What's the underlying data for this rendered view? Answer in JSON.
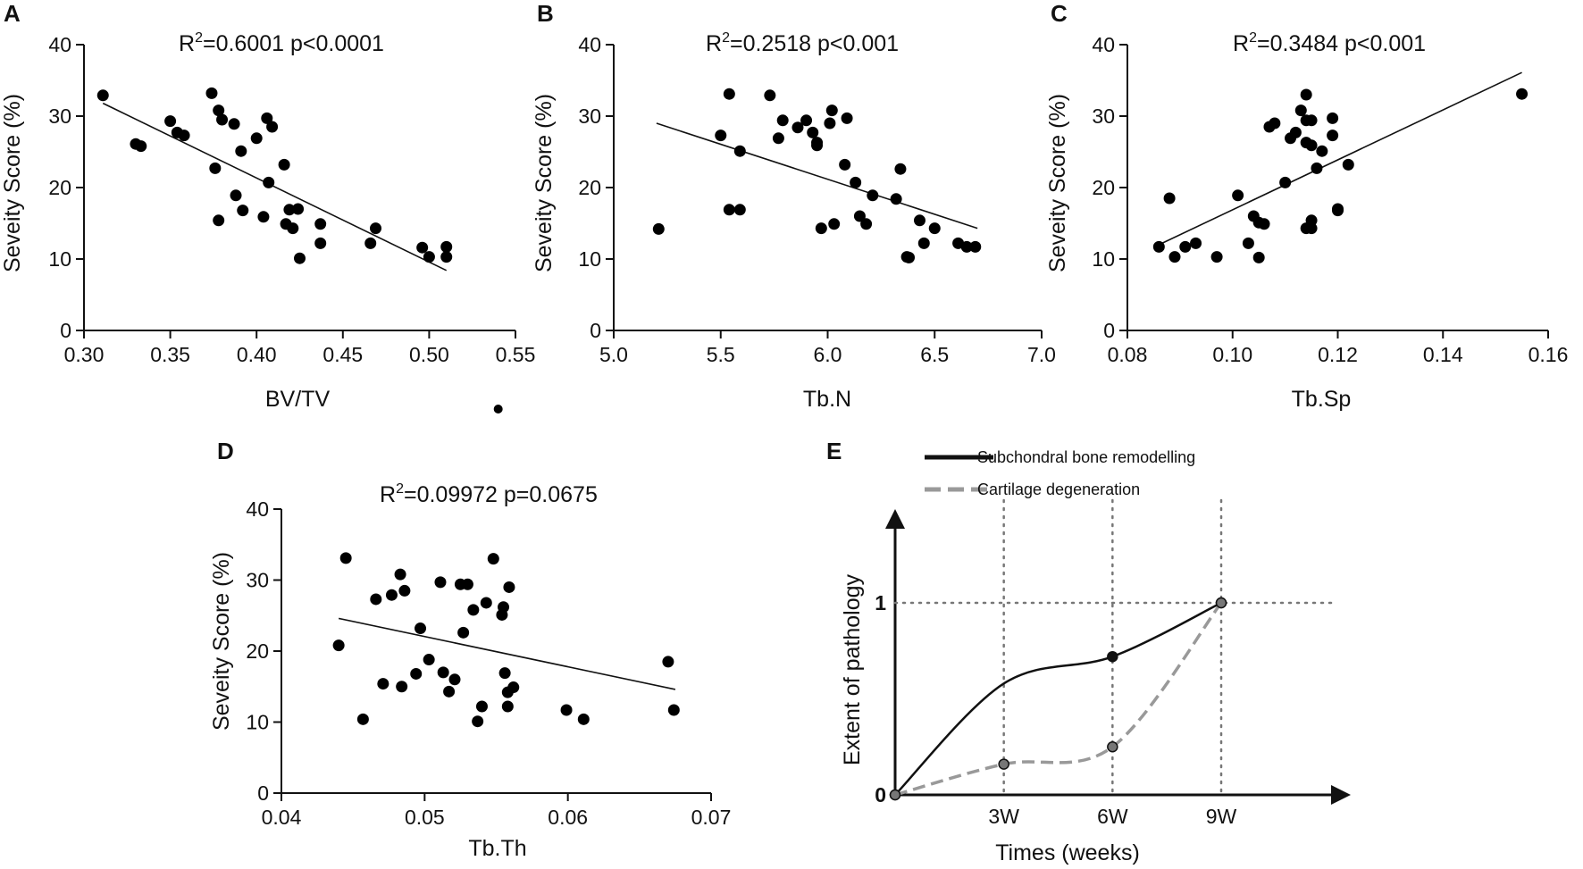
{
  "chart_data": [
    {
      "panel": "A",
      "type": "scatter",
      "stat": {
        "r2_prefix": "R",
        "r2_sup": "2",
        "r2_value": "=0.6001 p<0.0001"
      },
      "xlabel": "BV/TV",
      "ylabel": "Seveity Score (%)",
      "xlim": [
        0.3,
        0.55
      ],
      "ylim": [
        0,
        40
      ],
      "xticks": [
        "0.30",
        "0.35",
        "0.40",
        "0.45",
        "0.50",
        "0.55"
      ],
      "yticks": [
        "0",
        "10",
        "20",
        "30",
        "40"
      ],
      "fit_line": [
        [
          0.311,
          31.8
        ],
        [
          0.51,
          8.4
        ]
      ],
      "points": [
        [
          0.311,
          32.9
        ],
        [
          0.33,
          26.1
        ],
        [
          0.333,
          25.8
        ],
        [
          0.35,
          29.3
        ],
        [
          0.354,
          27.7
        ],
        [
          0.358,
          27.3
        ],
        [
          0.374,
          33.2
        ],
        [
          0.376,
          22.7
        ],
        [
          0.378,
          15.4
        ],
        [
          0.378,
          30.8
        ],
        [
          0.38,
          29.5
        ],
        [
          0.387,
          28.9
        ],
        [
          0.388,
          18.9
        ],
        [
          0.391,
          25.1
        ],
        [
          0.392,
          16.8
        ],
        [
          0.4,
          26.9
        ],
        [
          0.404,
          15.9
        ],
        [
          0.406,
          29.7
        ],
        [
          0.407,
          20.7
        ],
        [
          0.409,
          28.5
        ],
        [
          0.416,
          23.2
        ],
        [
          0.417,
          14.9
        ],
        [
          0.419,
          16.9
        ],
        [
          0.421,
          14.3
        ],
        [
          0.424,
          17.0
        ],
        [
          0.425,
          10.1
        ],
        [
          0.437,
          14.9
        ],
        [
          0.437,
          12.2
        ],
        [
          0.466,
          12.2
        ],
        [
          0.469,
          14.3
        ],
        [
          0.496,
          11.6
        ],
        [
          0.5,
          10.3
        ],
        [
          0.51,
          11.7
        ],
        [
          0.51,
          10.3
        ]
      ],
      "outlier_below_axis": [
        0.54,
        -11
      ]
    },
    {
      "panel": "B",
      "type": "scatter",
      "stat": {
        "r2_prefix": "R",
        "r2_sup": "2",
        "r2_value": "=0.2518 p<0.001"
      },
      "xlabel": "Tb.N",
      "ylabel": "Seveity Score (%)",
      "xlim": [
        5.0,
        7.0
      ],
      "ylim": [
        0,
        40
      ],
      "xticks": [
        "5.0",
        "5.5",
        "6.0",
        "6.5",
        "7.0"
      ],
      "yticks": [
        "0",
        "10",
        "20",
        "30",
        "40"
      ],
      "fit_line": [
        [
          5.2,
          29.0
        ],
        [
          6.7,
          14.3
        ]
      ],
      "points": [
        [
          5.21,
          14.2
        ],
        [
          5.5,
          27.3
        ],
        [
          5.54,
          33.1
        ],
        [
          5.54,
          16.9
        ],
        [
          5.59,
          16.9
        ],
        [
          5.59,
          25.1
        ],
        [
          5.73,
          32.9
        ],
        [
          5.77,
          26.9
        ],
        [
          5.79,
          29.4
        ],
        [
          5.86,
          28.4
        ],
        [
          5.9,
          29.4
        ],
        [
          5.93,
          27.7
        ],
        [
          5.95,
          25.9
        ],
        [
          5.95,
          26.3
        ],
        [
          5.97,
          14.3
        ],
        [
          6.01,
          29.0
        ],
        [
          6.02,
          30.8
        ],
        [
          6.03,
          14.9
        ],
        [
          6.08,
          23.2
        ],
        [
          6.09,
          29.7
        ],
        [
          6.13,
          20.7
        ],
        [
          6.15,
          16.0
        ],
        [
          6.18,
          14.9
        ],
        [
          6.21,
          18.9
        ],
        [
          6.32,
          18.4
        ],
        [
          6.34,
          22.6
        ],
        [
          6.37,
          10.3
        ],
        [
          6.38,
          10.2
        ],
        [
          6.43,
          15.4
        ],
        [
          6.45,
          12.2
        ],
        [
          6.5,
          14.3
        ],
        [
          6.61,
          12.2
        ],
        [
          6.65,
          11.7
        ],
        [
          6.69,
          11.7
        ]
      ]
    },
    {
      "panel": "C",
      "type": "scatter",
      "stat": {
        "r2_prefix": "R",
        "r2_sup": "2",
        "r2_value": "=0.3484 p<0.001"
      },
      "xlabel": "Tb.Sp",
      "ylabel": "Seveity Score (%)",
      "xlim": [
        0.08,
        0.16
      ],
      "ylim": [
        0,
        40
      ],
      "xticks": [
        "0.08",
        "0.10",
        "0.12",
        "0.14",
        "0.16"
      ],
      "yticks": [
        "0",
        "10",
        "20",
        "30",
        "40"
      ],
      "fit_line": [
        [
          0.086,
          12.0
        ],
        [
          0.155,
          36.1
        ]
      ],
      "points": [
        [
          0.086,
          11.7
        ],
        [
          0.088,
          18.5
        ],
        [
          0.089,
          10.3
        ],
        [
          0.091,
          11.7
        ],
        [
          0.093,
          12.2
        ],
        [
          0.097,
          10.3
        ],
        [
          0.101,
          18.9
        ],
        [
          0.103,
          12.2
        ],
        [
          0.104,
          16.0
        ],
        [
          0.105,
          10.2
        ],
        [
          0.105,
          15.1
        ],
        [
          0.106,
          14.9
        ],
        [
          0.107,
          28.5
        ],
        [
          0.108,
          29.0
        ],
        [
          0.11,
          20.7
        ],
        [
          0.111,
          26.9
        ],
        [
          0.112,
          27.7
        ],
        [
          0.113,
          30.8
        ],
        [
          0.114,
          33.0
        ],
        [
          0.114,
          26.3
        ],
        [
          0.114,
          29.4
        ],
        [
          0.114,
          14.3
        ],
        [
          0.115,
          15.4
        ],
        [
          0.115,
          14.3
        ],
        [
          0.115,
          29.4
        ],
        [
          0.115,
          25.9
        ],
        [
          0.116,
          22.7
        ],
        [
          0.117,
          25.1
        ],
        [
          0.119,
          29.7
        ],
        [
          0.119,
          27.3
        ],
        [
          0.12,
          17.0
        ],
        [
          0.12,
          16.8
        ],
        [
          0.122,
          23.2
        ],
        [
          0.155,
          33.1
        ]
      ]
    },
    {
      "panel": "D",
      "type": "scatter",
      "stat": {
        "r2_prefix": "R",
        "r2_sup": "2",
        "r2_value": "=0.09972 p=0.0675"
      },
      "xlabel": "Tb.Th",
      "ylabel": "Seveity Score (%)",
      "xlim": [
        0.04,
        0.07
      ],
      "ylim": [
        0,
        40
      ],
      "xticks": [
        "0.04",
        "0.05",
        "0.06",
        "0.07"
      ],
      "yticks": [
        "0",
        "10",
        "20",
        "30",
        "40"
      ],
      "fit_line": [
        [
          0.044,
          24.6
        ],
        [
          0.0675,
          14.6
        ]
      ],
      "points": [
        [
          0.044,
          20.8
        ],
        [
          0.0445,
          33.1
        ],
        [
          0.0457,
          10.4
        ],
        [
          0.0466,
          27.3
        ],
        [
          0.0471,
          15.4
        ],
        [
          0.0477,
          27.9
        ],
        [
          0.0483,
          30.8
        ],
        [
          0.0484,
          15.0
        ],
        [
          0.0486,
          28.5
        ],
        [
          0.0494,
          16.8
        ],
        [
          0.0497,
          23.2
        ],
        [
          0.0503,
          18.8
        ],
        [
          0.0511,
          29.7
        ],
        [
          0.0513,
          17.0
        ],
        [
          0.0517,
          14.3
        ],
        [
          0.0521,
          16.0
        ],
        [
          0.0525,
          29.4
        ],
        [
          0.0527,
          22.6
        ],
        [
          0.053,
          29.4
        ],
        [
          0.0534,
          25.8
        ],
        [
          0.0537,
          10.1
        ],
        [
          0.054,
          12.2
        ],
        [
          0.0543,
          26.8
        ],
        [
          0.0548,
          33.0
        ],
        [
          0.0554,
          25.1
        ],
        [
          0.0555,
          26.2
        ],
        [
          0.0556,
          16.9
        ],
        [
          0.0558,
          14.2
        ],
        [
          0.0558,
          12.2
        ],
        [
          0.0559,
          29.0
        ],
        [
          0.0562,
          14.9
        ],
        [
          0.0599,
          11.7
        ],
        [
          0.0611,
          10.4
        ],
        [
          0.067,
          18.5
        ],
        [
          0.0674,
          11.7
        ]
      ]
    },
    {
      "panel": "E",
      "type": "line",
      "ylabel": "Extent of pathology",
      "xlabel": "Times (weeks)",
      "xlim": [
        0,
        12.5
      ],
      "ylim": [
        0,
        1.4
      ],
      "xticks": [
        "3W",
        "6W",
        "9W"
      ],
      "yticks": [
        "0",
        "1"
      ],
      "series": [
        {
          "name": "Subchondral bone remodelling",
          "style": "solid",
          "color": "#111111",
          "x": [
            0,
            3,
            6,
            9
          ],
          "y": [
            0,
            0.58,
            0.72,
            1.0
          ],
          "markers_at": [
            0,
            6,
            9
          ]
        },
        {
          "name": "Cartilage degeneration",
          "style": "dashed",
          "color": "#999999",
          "x": [
            0,
            3,
            6,
            9
          ],
          "y": [
            0,
            0.16,
            0.25,
            1.0
          ],
          "markers_at": [
            0,
            3,
            6,
            9
          ]
        }
      ]
    }
  ]
}
